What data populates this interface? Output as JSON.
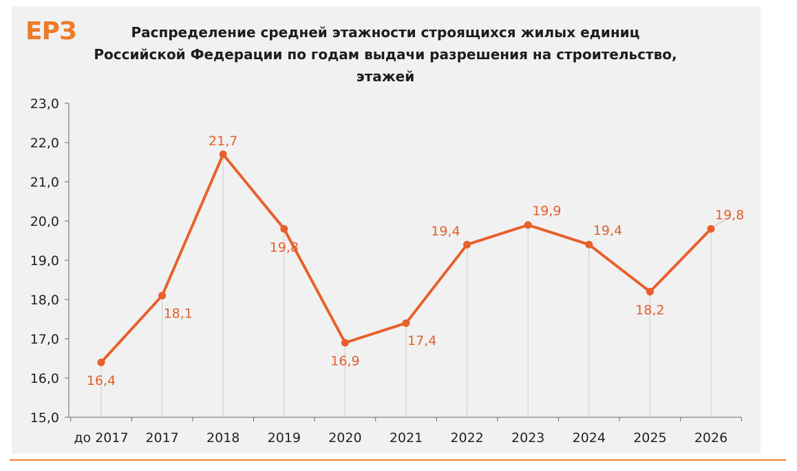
{
  "brand": {
    "logo_text": "ЕРЗ",
    "accent_color": "#ee7b2a",
    "line_color": "#e8602c"
  },
  "chart_data": {
    "type": "line",
    "title": "Распределение  средней этажности строящихся жилых единиц Российской Федерации  по годам выдачи разрешения  на строительство, этажей",
    "xlabel": "",
    "ylabel": "",
    "categories": [
      "до 2017",
      "2017",
      "2018",
      "2019",
      "2020",
      "2021",
      "2022",
      "2023",
      "2024",
      "2025",
      "2026"
    ],
    "values": [
      16.4,
      18.1,
      21.7,
      19.8,
      16.9,
      17.4,
      19.4,
      19.9,
      19.4,
      18.2,
      19.8
    ],
    "value_labels": [
      "16,4",
      "18,1",
      "21,7",
      "19,8",
      "16,9",
      "17,4",
      "19,4",
      "19,9",
      "19,4",
      "18,2",
      "19,8"
    ],
    "ylim": [
      15.0,
      23.0
    ],
    "yticks": [
      15.0,
      16.0,
      17.0,
      18.0,
      19.0,
      20.0,
      21.0,
      22.0,
      23.0
    ],
    "ytick_labels": [
      "15,0",
      "16,0",
      "17,0",
      "18,0",
      "19,0",
      "20,0",
      "21,0",
      "22,0",
      "23,0"
    ],
    "grid": "vertical drop lines",
    "legend": "none"
  }
}
